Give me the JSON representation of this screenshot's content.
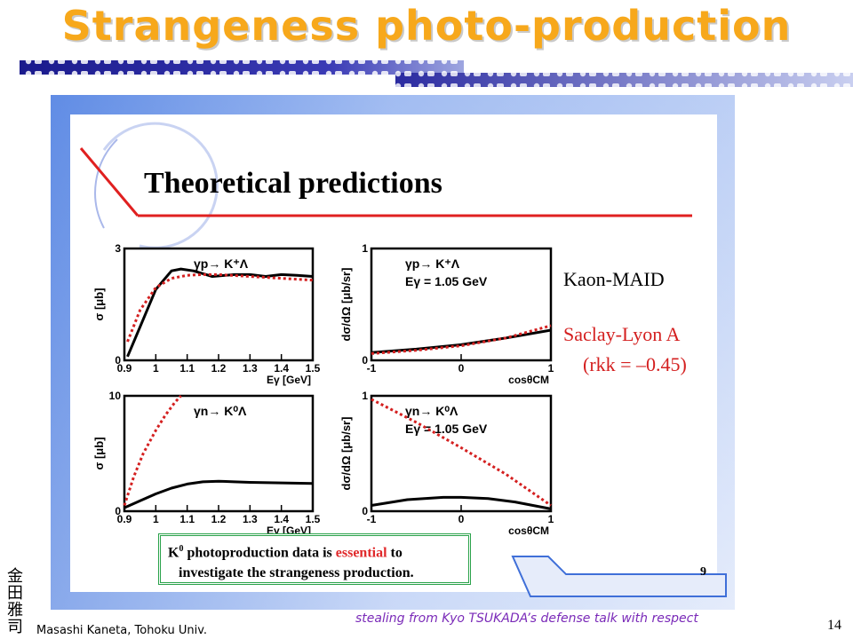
{
  "slide": {
    "title": "Strangeness photo-production",
    "inner_title": "Theoretical predictions",
    "legend_kaon": "Kaon-MAID",
    "legend_saclay": "Saclay-Lyon A",
    "legend_rkk": "(rkk = –0.45)",
    "note_line1_pre": "K",
    "note_line1_sup": "0",
    "note_line1_mid": " photoproduction data is ",
    "note_line1_ess": "essential",
    "note_line1_post": " to",
    "note_line2": "investigate the strangeness production.",
    "page_label": "9",
    "credit": "stealing from Kyo TSUKADA’s defense talk with respect",
    "slide_number": "14",
    "author": "Masashi Kaneta, Tohoku Univ.",
    "seal_text": "金田雅司"
  },
  "colors": {
    "title": "#f7a81b",
    "kaon_maid": "#000000",
    "saclay_lyon": "#d42020",
    "note_border": "#2aa24a"
  },
  "chart_data": [
    {
      "type": "line",
      "annotation": [
        "γp→ K⁺Λ"
      ],
      "xlabel": "Eγ [GeV]",
      "ylabel": "σ [μb]",
      "xlim": [
        0.9,
        1.5
      ],
      "ylim": [
        0,
        3
      ],
      "xticks": [
        "0.9",
        "1",
        "1.1",
        "1.2",
        "1.3",
        "1.4",
        "1.5"
      ],
      "yticks": [
        "0",
        "3"
      ],
      "series": [
        {
          "name": "Kaon-MAID",
          "style": "solid",
          "x": [
            0.91,
            0.95,
            1.0,
            1.05,
            1.08,
            1.12,
            1.18,
            1.25,
            1.3,
            1.35,
            1.4,
            1.45,
            1.5
          ],
          "y": [
            0.1,
            0.9,
            1.9,
            2.4,
            2.45,
            2.4,
            2.25,
            2.3,
            2.3,
            2.25,
            2.3,
            2.28,
            2.25
          ]
        },
        {
          "name": "Saclay-Lyon A",
          "style": "dotted",
          "x": [
            0.91,
            0.95,
            1.0,
            1.05,
            1.1,
            1.15,
            1.2,
            1.3,
            1.4,
            1.5
          ],
          "y": [
            0.5,
            1.35,
            1.95,
            2.2,
            2.28,
            2.3,
            2.3,
            2.25,
            2.2,
            2.15
          ]
        }
      ]
    },
    {
      "type": "line",
      "annotation": [
        "γp→ K⁺Λ",
        "Eγ = 1.05 GeV"
      ],
      "xlabel": "cosθCM",
      "ylabel": "dσ/dΩ [μb/sr]",
      "xlim": [
        -1,
        1
      ],
      "ylim": [
        0,
        1
      ],
      "xticks": [
        "-1",
        "0",
        "1"
      ],
      "yticks": [
        "0",
        "1"
      ],
      "series": [
        {
          "name": "Kaon-MAID",
          "style": "solid",
          "x": [
            -1,
            -0.5,
            0,
            0.5,
            1
          ],
          "y": [
            0.07,
            0.1,
            0.14,
            0.2,
            0.27
          ]
        },
        {
          "name": "Saclay-Lyon A",
          "style": "dotted",
          "x": [
            -1,
            -0.5,
            0,
            0.5,
            1
          ],
          "y": [
            0.06,
            0.09,
            0.13,
            0.2,
            0.31
          ]
        }
      ]
    },
    {
      "type": "line",
      "annotation": [
        "γn→ K⁰Λ"
      ],
      "xlabel": "Eγ [GeV]",
      "ylabel": "σ [μb]",
      "xlim": [
        0.9,
        1.5
      ],
      "ylim": [
        0,
        10
      ],
      "xticks": [
        "0.9",
        "1",
        "1.1",
        "1.2",
        "1.3",
        "1.4",
        "1.5"
      ],
      "yticks": [
        "0",
        "10"
      ],
      "series": [
        {
          "name": "Kaon-MAID",
          "style": "solid",
          "x": [
            0.9,
            0.95,
            1.0,
            1.05,
            1.1,
            1.15,
            1.2,
            1.25,
            1.3,
            1.4,
            1.5
          ],
          "y": [
            0.3,
            0.9,
            1.5,
            2.0,
            2.35,
            2.55,
            2.6,
            2.55,
            2.5,
            2.45,
            2.4
          ]
        },
        {
          "name": "Saclay-Lyon A",
          "style": "dotted",
          "x": [
            0.9,
            0.93,
            0.96,
            1.0,
            1.03,
            1.06,
            1.08
          ],
          "y": [
            0.5,
            3.0,
            5.0,
            7.0,
            8.3,
            9.4,
            10.0
          ]
        }
      ]
    },
    {
      "type": "line",
      "annotation": [
        "γn→ K⁰Λ",
        "Eγ = 1.05 GeV"
      ],
      "xlabel": "cosθCM",
      "ylabel": "dσ/dΩ [μb/sr]",
      "xlim": [
        -1,
        1
      ],
      "ylim": [
        0,
        1
      ],
      "xticks": [
        "-1",
        "0",
        "1"
      ],
      "yticks": [
        "0",
        "1"
      ],
      "series": [
        {
          "name": "Kaon-MAID",
          "style": "solid",
          "x": [
            -1,
            -0.6,
            -0.2,
            0,
            0.3,
            0.6,
            1
          ],
          "y": [
            0.05,
            0.1,
            0.12,
            0.12,
            0.11,
            0.08,
            0.02
          ]
        },
        {
          "name": "Saclay-Lyon A",
          "style": "dotted",
          "x": [
            -1,
            -0.5,
            0,
            0.5,
            1
          ],
          "y": [
            0.97,
            0.77,
            0.55,
            0.32,
            0.05
          ]
        }
      ]
    }
  ]
}
